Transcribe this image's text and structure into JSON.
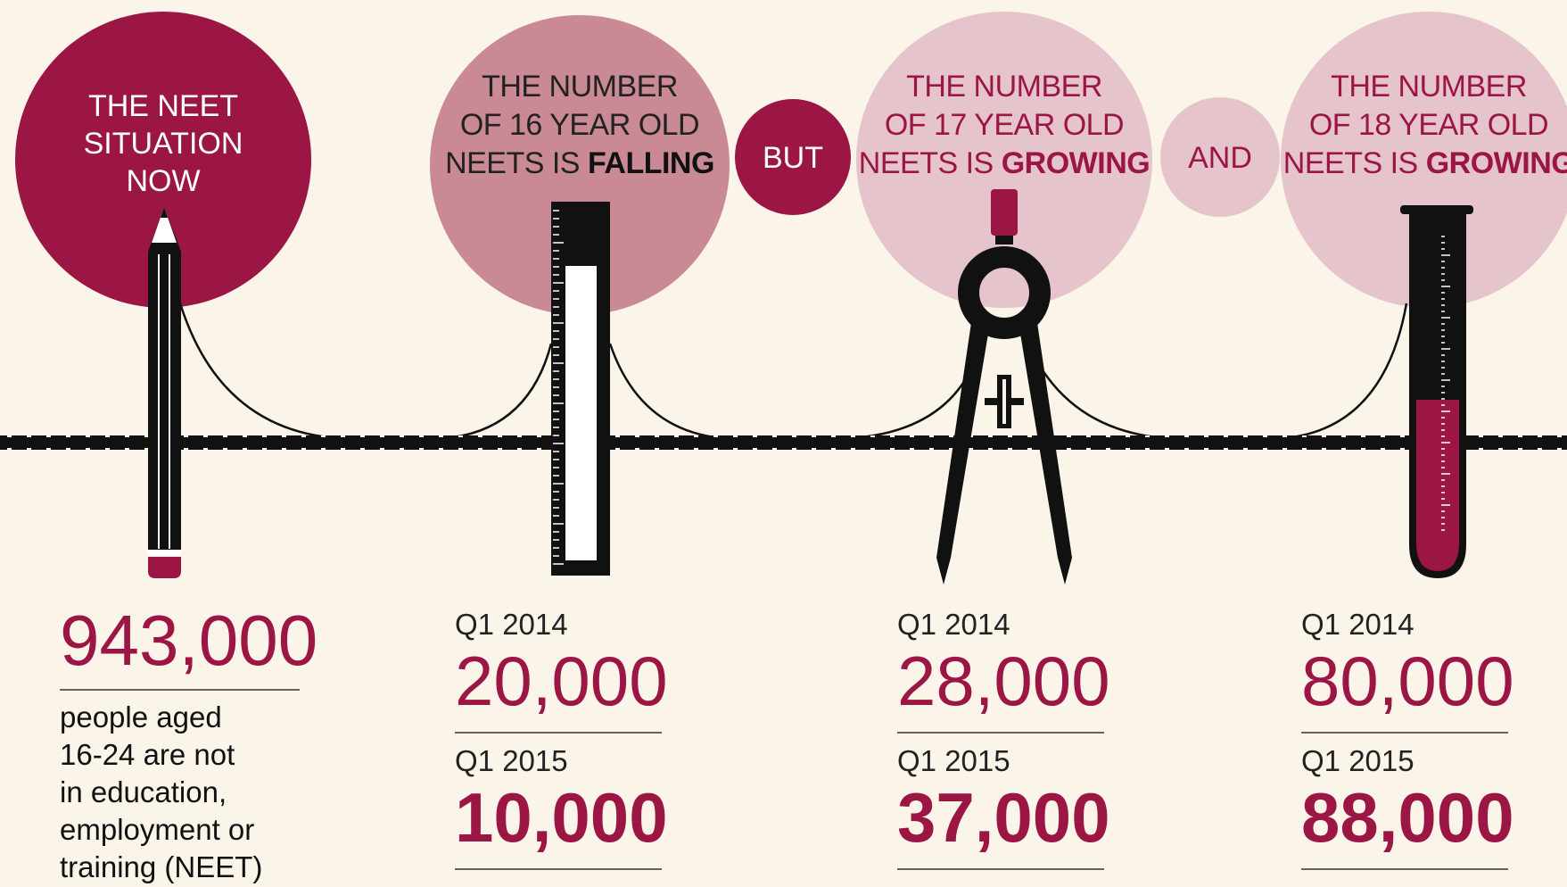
{
  "intro": {
    "title_lines": [
      "THE NEET",
      "SITUATION",
      "NOW"
    ],
    "value": "943,000",
    "description_lines": [
      "people aged",
      "16-24 are not",
      "in education,",
      "employment or",
      "training (NEET)"
    ]
  },
  "connectors": [
    "BUT",
    "AND"
  ],
  "panels": [
    {
      "title_lines": [
        "THE NUMBER",
        "OF 16 YEAR OLD",
        "NEETS IS"
      ],
      "emphasis": "FALLING",
      "stats": [
        {
          "label": "Q1 2014",
          "value": "20,000"
        },
        {
          "label": "Q1 2015",
          "value": "10,000"
        }
      ]
    },
    {
      "title_lines": [
        "THE NUMBER",
        "OF 17 YEAR OLD",
        "NEETS IS"
      ],
      "emphasis": "GROWING",
      "stats": [
        {
          "label": "Q1 2014",
          "value": "28,000"
        },
        {
          "label": "Q1 2015",
          "value": "37,000"
        }
      ]
    },
    {
      "title_lines": [
        "THE NUMBER",
        "OF 18 YEAR OLD",
        "NEETS IS"
      ],
      "emphasis": "GROWING",
      "stats": [
        {
          "label": "Q1 2014",
          "value": "80,000"
        },
        {
          "label": "Q1 2015",
          "value": "88,000"
        }
      ]
    }
  ]
}
